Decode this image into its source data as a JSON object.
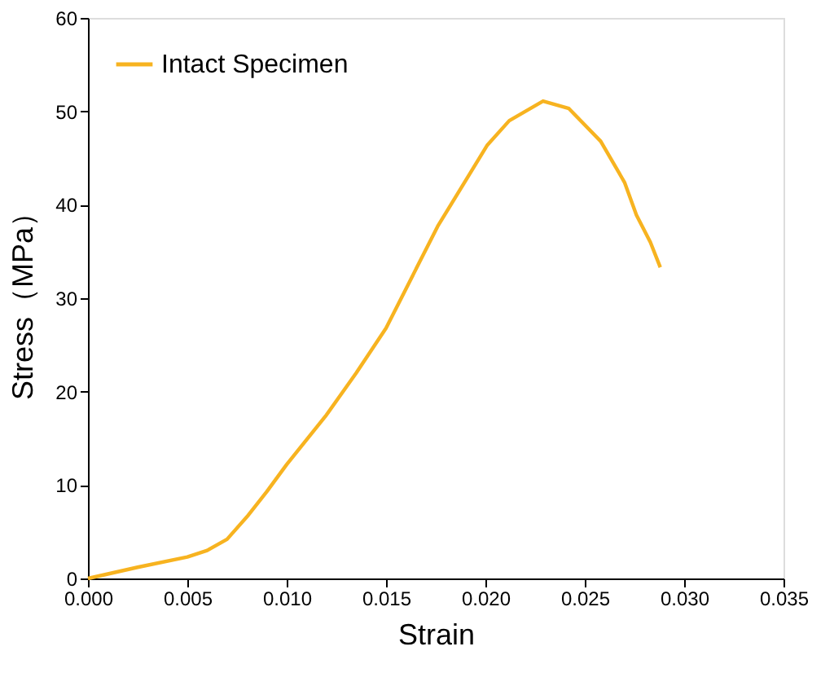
{
  "chart_data": {
    "type": "line",
    "xlabel": "Strain",
    "ylabel": "Stress（MPa）",
    "xlim": [
      0,
      0.035
    ],
    "xticks": [
      {
        "value": 0,
        "label": "0.000"
      },
      0.005,
      {
        "value": 0.01,
        "label": "0.010"
      },
      0.015,
      {
        "value": 0.02,
        "label": "0.020"
      },
      0.025,
      {
        "value": 0.03,
        "label": "0.030"
      },
      0.035
    ],
    "ylim": [
      0,
      60
    ],
    "yticks": [
      0,
      10,
      20,
      30,
      40,
      50,
      60
    ],
    "grid": false,
    "legend": "top left",
    "line_style": "solid",
    "marker": "none",
    "series": [
      {
        "name": "Intact Specimen",
        "color": "#f7b320",
        "x": [
          0,
          0.0025,
          0.005,
          0.006,
          0.007,
          0.008,
          0.009,
          0.01,
          0.012,
          0.0135,
          0.015,
          0.0176,
          0.0201,
          0.0212,
          0.0229,
          0.0242,
          0.0258,
          0.027,
          0.0276,
          0.0283,
          0.0288
        ],
        "values": [
          0,
          1.2,
          2.3,
          3.0,
          4.2,
          6.6,
          9.3,
          12.2,
          17.5,
          22.0,
          26.8,
          37.7,
          46.4,
          49.0,
          51.1,
          50.3,
          46.8,
          42.4,
          38.9,
          36.0,
          33.3
        ]
      }
    ]
  }
}
